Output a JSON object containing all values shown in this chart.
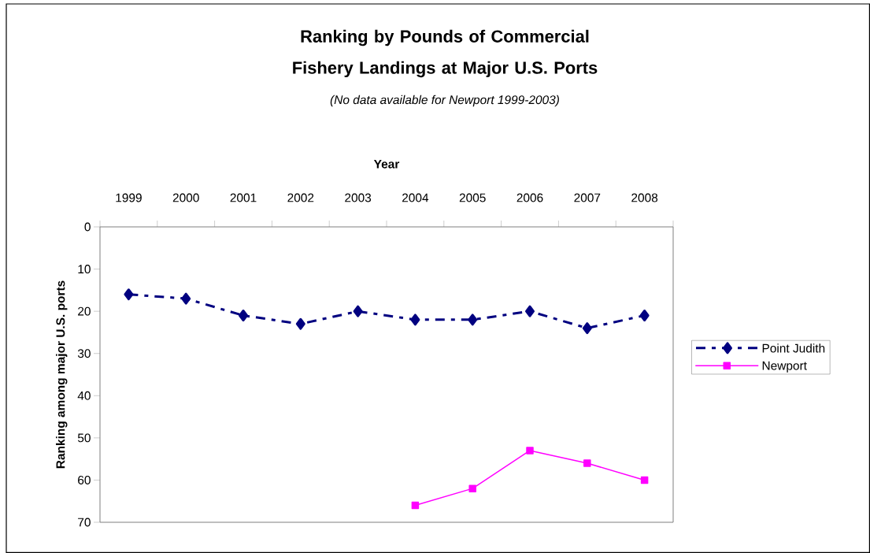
{
  "chart_data": {
    "type": "line",
    "title": "Ranking by Pounds of Commercial Fishery Landings at Major U.S. Ports",
    "subtitle": "(No data available for Newport 1999-2003)",
    "xlabel": "Year",
    "ylabel": "Ranking among major U.S. ports",
    "categories": [
      "1999",
      "2000",
      "2001",
      "2002",
      "2003",
      "2004",
      "2005",
      "2006",
      "2007",
      "2008"
    ],
    "series": [
      {
        "name": "Point Judith",
        "color": "#000080",
        "marker": "diamond",
        "line_style": "dashed",
        "values": [
          16,
          17,
          21,
          23,
          20,
          22,
          22,
          20,
          24,
          21
        ]
      },
      {
        "name": "Newport",
        "color": "#ff00ff",
        "marker": "square",
        "line_style": "solid",
        "values": [
          null,
          null,
          null,
          null,
          null,
          66,
          62,
          53,
          56,
          60
        ]
      }
    ],
    "ylim": [
      70,
      0
    ],
    "yticks": [
      0,
      10,
      20,
      30,
      40,
      50,
      60,
      70
    ],
    "grid": false,
    "legend": "right"
  }
}
